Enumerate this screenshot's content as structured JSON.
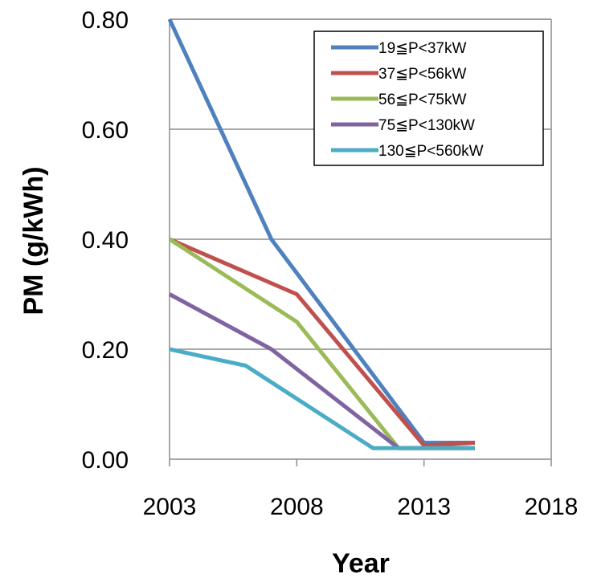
{
  "chart_data": {
    "type": "line",
    "title": "",
    "xlabel": "Year",
    "ylabel": "PM (g/kWh)",
    "xlim": [
      2003,
      2018
    ],
    "ylim": [
      0.0,
      0.8
    ],
    "x_ticks": [
      2003,
      2008,
      2013,
      2018
    ],
    "y_ticks": [
      "0.00",
      "0.20",
      "0.40",
      "0.60",
      "0.80"
    ],
    "grid": "horizontal",
    "legend_position": "top-right",
    "series": [
      {
        "name": "19≦P<37kW",
        "color": "#4F81BD",
        "points": [
          [
            2003,
            0.8
          ],
          [
            2007,
            0.4
          ],
          [
            2013,
            0.03
          ],
          [
            2015,
            0.03
          ]
        ]
      },
      {
        "name": "37≦P<56kW",
        "color": "#C0504D",
        "points": [
          [
            2003,
            0.4
          ],
          [
            2008,
            0.3
          ],
          [
            2013,
            0.025
          ],
          [
            2015,
            0.03
          ]
        ]
      },
      {
        "name": "56≦P<75kW",
        "color": "#9BBB59",
        "points": [
          [
            2003,
            0.4
          ],
          [
            2008,
            0.25
          ],
          [
            2012,
            0.02
          ],
          [
            2015,
            0.02
          ]
        ]
      },
      {
        "name": "75≦P<130kW",
        "color": "#8064A2",
        "points": [
          [
            2003,
            0.3
          ],
          [
            2007,
            0.2
          ],
          [
            2012,
            0.02
          ],
          [
            2015,
            0.02
          ]
        ]
      },
      {
        "name": "130≦P<560kW",
        "color": "#4BACC6",
        "points": [
          [
            2003,
            0.2
          ],
          [
            2006,
            0.17
          ],
          [
            2011,
            0.02
          ],
          [
            2015,
            0.02
          ]
        ]
      }
    ]
  }
}
